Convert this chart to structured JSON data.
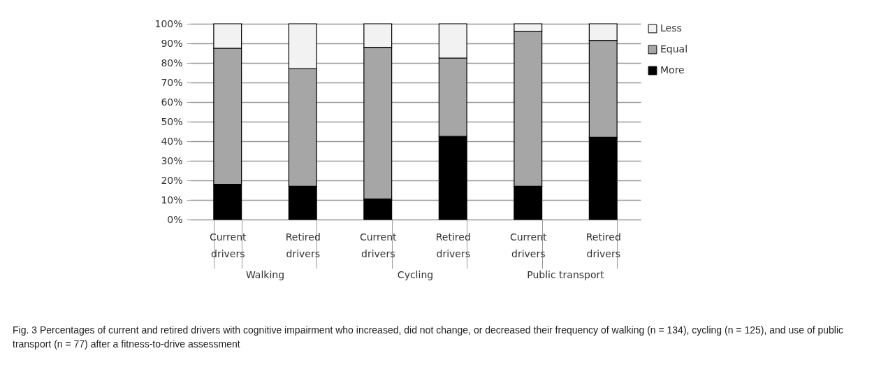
{
  "chart_data": {
    "type": "bar",
    "stacked": true,
    "categories": [
      "Current drivers",
      "Retired drivers",
      "Current drivers",
      "Retired drivers",
      "Current drivers",
      "Retired drivers"
    ],
    "series": [
      {
        "name": "More",
        "color": "#000000",
        "values": [
          18,
          17,
          10.5,
          42.5,
          17,
          42
        ]
      },
      {
        "name": "Equal",
        "color": "#a6a6a6",
        "values": [
          69.5,
          60,
          77.5,
          40,
          79,
          49.5
        ]
      },
      {
        "name": "Less",
        "color": "#f2f2f2",
        "values": [
          12.5,
          23,
          12,
          17.5,
          4,
          8.5
        ]
      }
    ],
    "ylim": [
      0,
      100
    ],
    "yticks": [
      {
        "value": 0,
        "label": "0%"
      },
      {
        "value": 10,
        "label": "10%"
      },
      {
        "value": 20,
        "label": "20%"
      },
      {
        "value": 30,
        "label": "30%"
      },
      {
        "value": 40,
        "label": "40%"
      },
      {
        "value": 50,
        "label": "50%"
      },
      {
        "value": 60,
        "label": "60%"
      },
      {
        "value": 70,
        "label": "70%"
      },
      {
        "value": 80,
        "label": "80%"
      },
      {
        "value": 90,
        "label": "90%"
      },
      {
        "value": 100,
        "label": "100%"
      }
    ],
    "grid": "y",
    "legend": "right",
    "annotations": [
      "Walking",
      "Cycling",
      "Public transport",
      "Fig. 3 Percentages of current and retired drivers with cognitive impairment who increased, did not change, or decreased their frequency of walking (n = 134), cycling (n = 125), and use of public transport (n = 77) after a fitness-to-drive assessment"
    ]
  }
}
